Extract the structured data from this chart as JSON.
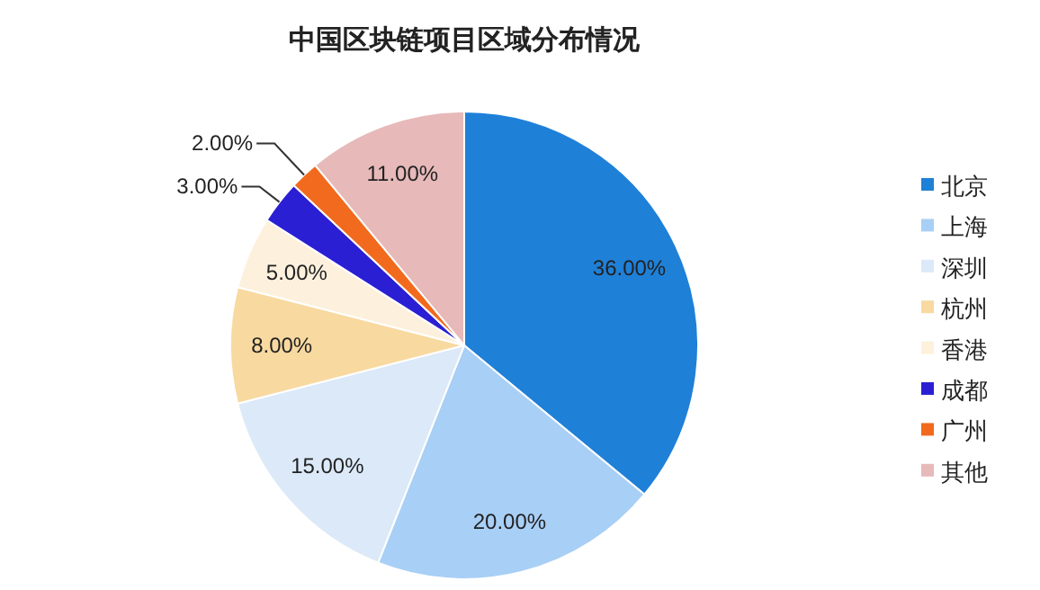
{
  "chart_data": {
    "type": "pie",
    "title": "中国区块链项目区域分布情况",
    "categories": [
      "北京",
      "上海",
      "深圳",
      "杭州",
      "香港",
      "成都",
      "广州",
      "其他"
    ],
    "values": [
      36,
      20,
      15,
      8,
      5,
      3,
      2,
      11
    ],
    "colors": [
      "#1f80d8",
      "#a8cff6",
      "#dbe9f8",
      "#f8d9a0",
      "#fdf1dd",
      "#2b1fd4",
      "#f26a1e",
      "#e7b9b9"
    ],
    "value_labels": [
      "36.00%",
      "20.00%",
      "15.00%",
      "8.00%",
      "5.00%",
      "3.00%",
      "2.00%",
      "11.00%"
    ],
    "legend": "right"
  }
}
